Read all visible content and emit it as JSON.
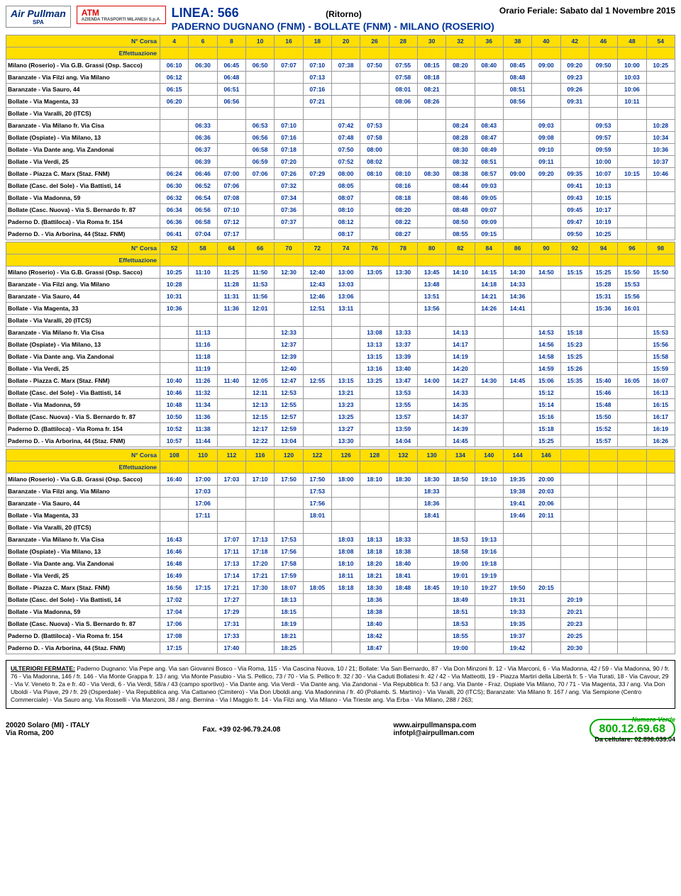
{
  "header": {
    "logo1": "Air Pullman",
    "logo1_sub": "SPA",
    "logo2": "ATM",
    "logo2_sub": "AZIENDA TRASPORTI MILANESI S.p.A.",
    "linea": "LINEA: 566",
    "ritorno": "(Ritorno)",
    "orario": "Orario Feriale: Sabato dal 1 Novembre 2015",
    "route": "PADERNO DUGNANO (FNM) - BOLLATE (FNM) - MILANO (ROSERIO)"
  },
  "stops": [
    "Milano (Roserio) - Via G.B. Grassi (Osp. Sacco)",
    "Baranzate - Via Filzi ang. Via Milano",
    "Baranzate - Via Sauro, 44",
    "Bollate - Via Magenta, 33",
    "Bollate - Via Varalli, 20 (ITCS)",
    "Baranzate - Via Milano fr. Via Cisa",
    "Bollate (Ospiate) - Via Milano, 13",
    "Bollate - Via Dante ang. Via Zandonai",
    "Bollate - Via Verdi, 25",
    "Bollate - Piazza C. Marx (Staz. FNM)",
    "Bollate (Casc. del Sole) - Via Battisti, 14",
    "Bollate - Via Madonna, 59",
    "Bollate (Casc. Nuova) - Via S. Bernardo fr. 87",
    "Paderno D. (Battiloca) - Via Roma fr. 154",
    "Paderno D. - Via Arborina, 44 (Staz. FNM)"
  ],
  "blocks": [
    {
      "corsa_label": "N° Corsa",
      "eff_label": "Effettuazione",
      "runs": [
        "4",
        "6",
        "8",
        "10",
        "16",
        "18",
        "20",
        "26",
        "28",
        "30",
        "32",
        "36",
        "38",
        "40",
        "42",
        "46",
        "48",
        "54"
      ],
      "rows": [
        [
          "06:10",
          "06:30",
          "06:45",
          "06:50",
          "07:07",
          "07:10",
          "07:38",
          "07:50",
          "07:55",
          "08:15",
          "08:20",
          "08:40",
          "08:45",
          "09:00",
          "09:20",
          "09:50",
          "10:00",
          "10:25"
        ],
        [
          "06:12",
          "",
          "06:48",
          "",
          "",
          "07:13",
          "",
          "",
          "07:58",
          "08:18",
          "",
          "",
          "08:48",
          "",
          "09:23",
          "",
          "10:03",
          ""
        ],
        [
          "06:15",
          "",
          "06:51",
          "",
          "",
          "07:16",
          "",
          "",
          "08:01",
          "08:21",
          "",
          "",
          "08:51",
          "",
          "09:26",
          "",
          "10:06",
          ""
        ],
        [
          "06:20",
          "",
          "06:56",
          "",
          "",
          "07:21",
          "",
          "",
          "08:06",
          "08:26",
          "",
          "",
          "08:56",
          "",
          "09:31",
          "",
          "10:11",
          ""
        ],
        [
          "",
          "",
          "",
          "",
          "",
          "",
          "",
          "",
          "",
          "",
          "",
          "",
          "",
          "",
          "",
          "",
          "",
          ""
        ],
        [
          "",
          "06:33",
          "",
          "06:53",
          "07:10",
          "",
          "07:42",
          "07:53",
          "",
          "",
          "08:24",
          "08:43",
          "",
          "09:03",
          "",
          "09:53",
          "",
          "10:28"
        ],
        [
          "",
          "06:36",
          "",
          "06:56",
          "07:16",
          "",
          "07:48",
          "07:58",
          "",
          "",
          "08:28",
          "08:47",
          "",
          "09:08",
          "",
          "09:57",
          "",
          "10:34"
        ],
        [
          "",
          "06:37",
          "",
          "06:58",
          "07:18",
          "",
          "07:50",
          "08:00",
          "",
          "",
          "08:30",
          "08:49",
          "",
          "09:10",
          "",
          "09:59",
          "",
          "10:36"
        ],
        [
          "",
          "06:39",
          "",
          "06:59",
          "07:20",
          "",
          "07:52",
          "08:02",
          "",
          "",
          "08:32",
          "08:51",
          "",
          "09:11",
          "",
          "10:00",
          "",
          "10:37"
        ],
        [
          "06:24",
          "06:46",
          "07:00",
          "07:06",
          "07:26",
          "07:29",
          "08:00",
          "08:10",
          "08:10",
          "08:30",
          "08:38",
          "08:57",
          "09:00",
          "09:20",
          "09:35",
          "10:07",
          "10:15",
          "10:46"
        ],
        [
          "06:30",
          "06:52",
          "07:06",
          "",
          "07:32",
          "",
          "08:05",
          "",
          "08:16",
          "",
          "08:44",
          "09:03",
          "",
          "",
          "09:41",
          "10:13",
          "",
          ""
        ],
        [
          "06:32",
          "06:54",
          "07:08",
          "",
          "07:34",
          "",
          "08:07",
          "",
          "08:18",
          "",
          "08:46",
          "09:05",
          "",
          "",
          "09:43",
          "10:15",
          "",
          ""
        ],
        [
          "06:34",
          "06:56",
          "07:10",
          "",
          "07:36",
          "",
          "08:10",
          "",
          "08:20",
          "",
          "08:48",
          "09:07",
          "",
          "",
          "09:45",
          "10:17",
          "",
          ""
        ],
        [
          "06:36",
          "06:58",
          "07:12",
          "",
          "07:37",
          "",
          "08:12",
          "",
          "08:22",
          "",
          "08:50",
          "09:09",
          "",
          "",
          "09:47",
          "10:19",
          "",
          ""
        ],
        [
          "06:41",
          "07:04",
          "07:17",
          "",
          "",
          "",
          "08:17",
          "",
          "08:27",
          "",
          "08:55",
          "09:15",
          "",
          "",
          "09:50",
          "10:25",
          "",
          ""
        ]
      ]
    },
    {
      "corsa_label": "N° Corsa",
      "eff_label": "Effettuazione",
      "runs": [
        "52",
        "58",
        "64",
        "66",
        "70",
        "72",
        "74",
        "76",
        "78",
        "80",
        "82",
        "84",
        "86",
        "90",
        "92",
        "94",
        "96",
        "98"
      ],
      "rows": [
        [
          "10:25",
          "11:10",
          "11:25",
          "11:50",
          "12:30",
          "12:40",
          "13:00",
          "13:05",
          "13:30",
          "13:45",
          "14:10",
          "14:15",
          "14:30",
          "14:50",
          "15:15",
          "15:25",
          "15:50",
          "15:50"
        ],
        [
          "10:28",
          "",
          "11:28",
          "11:53",
          "",
          "12:43",
          "13:03",
          "",
          "",
          "13:48",
          "",
          "14:18",
          "14:33",
          "",
          "",
          "15:28",
          "15:53",
          ""
        ],
        [
          "10:31",
          "",
          "11:31",
          "11:56",
          "",
          "12:46",
          "13:06",
          "",
          "",
          "13:51",
          "",
          "14:21",
          "14:36",
          "",
          "",
          "15:31",
          "15:56",
          ""
        ],
        [
          "10:36",
          "",
          "11:36",
          "12:01",
          "",
          "12:51",
          "13:11",
          "",
          "",
          "13:56",
          "",
          "14:26",
          "14:41",
          "",
          "",
          "15:36",
          "16:01",
          ""
        ],
        [
          "",
          "",
          "",
          "",
          "",
          "",
          "",
          "",
          "",
          "",
          "",
          "",
          "",
          "",
          "",
          "",
          "",
          ""
        ],
        [
          "",
          "11:13",
          "",
          "",
          "12:33",
          "",
          "",
          "13:08",
          "13:33",
          "",
          "14:13",
          "",
          "",
          "14:53",
          "15:18",
          "",
          "",
          "15:53"
        ],
        [
          "",
          "11:16",
          "",
          "",
          "12:37",
          "",
          "",
          "13:13",
          "13:37",
          "",
          "14:17",
          "",
          "",
          "14:56",
          "15:23",
          "",
          "",
          "15:56"
        ],
        [
          "",
          "11:18",
          "",
          "",
          "12:39",
          "",
          "",
          "13:15",
          "13:39",
          "",
          "14:19",
          "",
          "",
          "14:58",
          "15:25",
          "",
          "",
          "15:58"
        ],
        [
          "",
          "11:19",
          "",
          "",
          "12:40",
          "",
          "",
          "13:16",
          "13:40",
          "",
          "14:20",
          "",
          "",
          "14:59",
          "15:26",
          "",
          "",
          "15:59"
        ],
        [
          "10:40",
          "11:26",
          "11:40",
          "12:05",
          "12:47",
          "12:55",
          "13:15",
          "13:25",
          "13:47",
          "14:00",
          "14:27",
          "14:30",
          "14:45",
          "15:06",
          "15:35",
          "15:40",
          "16:05",
          "16:07"
        ],
        [
          "10:46",
          "11:32",
          "",
          "12:11",
          "12:53",
          "",
          "13:21",
          "",
          "13:53",
          "",
          "14:33",
          "",
          "",
          "15:12",
          "",
          "15:46",
          "",
          "16:13"
        ],
        [
          "10:48",
          "11:34",
          "",
          "12:13",
          "12:55",
          "",
          "13:23",
          "",
          "13:55",
          "",
          "14:35",
          "",
          "",
          "15:14",
          "",
          "15:48",
          "",
          "16:15"
        ],
        [
          "10:50",
          "11:36",
          "",
          "12:15",
          "12:57",
          "",
          "13:25",
          "",
          "13:57",
          "",
          "14:37",
          "",
          "",
          "15:16",
          "",
          "15:50",
          "",
          "16:17"
        ],
        [
          "10:52",
          "11:38",
          "",
          "12:17",
          "12:59",
          "",
          "13:27",
          "",
          "13:59",
          "",
          "14:39",
          "",
          "",
          "15:18",
          "",
          "15:52",
          "",
          "16:19"
        ],
        [
          "10:57",
          "11:44",
          "",
          "12:22",
          "13:04",
          "",
          "13:30",
          "",
          "14:04",
          "",
          "14:45",
          "",
          "",
          "15:25",
          "",
          "15:57",
          "",
          "16:26"
        ]
      ]
    },
    {
      "corsa_label": "N° Corsa",
      "eff_label": "Effettuazione",
      "runs": [
        "108",
        "110",
        "112",
        "116",
        "120",
        "122",
        "126",
        "128",
        "132",
        "130",
        "134",
        "140",
        "144",
        "146",
        "",
        "",
        "",
        ""
      ],
      "rows": [
        [
          "16:40",
          "17:00",
          "17:03",
          "17:10",
          "17:50",
          "17:50",
          "18:00",
          "18:10",
          "18:30",
          "18:30",
          "18:50",
          "19:10",
          "19:35",
          "20:00",
          "",
          "",
          "",
          ""
        ],
        [
          "",
          "17:03",
          "",
          "",
          "",
          "17:53",
          "",
          "",
          "",
          "18:33",
          "",
          "",
          "19:38",
          "20:03",
          "",
          "",
          "",
          ""
        ],
        [
          "",
          "17:06",
          "",
          "",
          "",
          "17:56",
          "",
          "",
          "",
          "18:36",
          "",
          "",
          "19:41",
          "20:06",
          "",
          "",
          "",
          ""
        ],
        [
          "",
          "17:11",
          "",
          "",
          "",
          "18:01",
          "",
          "",
          "",
          "18:41",
          "",
          "",
          "19:46",
          "20:11",
          "",
          "",
          "",
          ""
        ],
        [
          "",
          "",
          "",
          "",
          "",
          "",
          "",
          "",
          "",
          "",
          "",
          "",
          "",
          "",
          "",
          "",
          "",
          ""
        ],
        [
          "16:43",
          "",
          "17:07",
          "17:13",
          "17:53",
          "",
          "18:03",
          "18:13",
          "18:33",
          "",
          "18:53",
          "19:13",
          "",
          "",
          "",
          "",
          "",
          ""
        ],
        [
          "16:46",
          "",
          "17:11",
          "17:18",
          "17:56",
          "",
          "18:08",
          "18:18",
          "18:38",
          "",
          "18:58",
          "19:16",
          "",
          "",
          "",
          "",
          "",
          ""
        ],
        [
          "16:48",
          "",
          "17:13",
          "17:20",
          "17:58",
          "",
          "18:10",
          "18:20",
          "18:40",
          "",
          "19:00",
          "19:18",
          "",
          "",
          "",
          "",
          "",
          ""
        ],
        [
          "16:49",
          "",
          "17:14",
          "17:21",
          "17:59",
          "",
          "18:11",
          "18:21",
          "18:41",
          "",
          "19:01",
          "19:19",
          "",
          "",
          "",
          "",
          "",
          ""
        ],
        [
          "16:56",
          "17:15",
          "17:21",
          "17:30",
          "18:07",
          "18:05",
          "18:18",
          "18:30",
          "18:48",
          "18:45",
          "19:10",
          "19:27",
          "19:50",
          "20:15",
          "",
          "",
          "",
          ""
        ],
        [
          "17:02",
          "",
          "17:27",
          "",
          "18:13",
          "",
          "",
          "18:36",
          "",
          "",
          "18:49",
          "",
          "19:31",
          "",
          "20:19",
          "",
          "",
          ""
        ],
        [
          "17:04",
          "",
          "17:29",
          "",
          "18:15",
          "",
          "",
          "18:38",
          "",
          "",
          "18:51",
          "",
          "19:33",
          "",
          "20:21",
          "",
          "",
          ""
        ],
        [
          "17:06",
          "",
          "17:31",
          "",
          "18:19",
          "",
          "",
          "18:40",
          "",
          "",
          "18:53",
          "",
          "19:35",
          "",
          "20:23",
          "",
          "",
          ""
        ],
        [
          "17:08",
          "",
          "17:33",
          "",
          "18:21",
          "",
          "",
          "18:42",
          "",
          "",
          "18:55",
          "",
          "19:37",
          "",
          "20:25",
          "",
          "",
          ""
        ],
        [
          "17:15",
          "",
          "17:40",
          "",
          "18:25",
          "",
          "",
          "18:47",
          "",
          "",
          "19:00",
          "",
          "19:42",
          "",
          "20:30",
          "",
          "",
          ""
        ]
      ]
    }
  ],
  "footer": {
    "ul": "ULTERIORI FERMATE:",
    "text": " Paderno Dugnano: Via Pepe ang. Via san Giovanni Bosco - Via Roma, 115 - Via Cascina Nuova, 10 / 21; Bollate: Via San Bernardo, 87 - Via Don Minzoni fr. 12 - Via Marconi, 6 - Via Madonna, 42 / 59 - Via Madonna, 90 / fr. 76 - Via Madonna, 146 / fr. 146 - Via Monte Grappa  fr. 13 / ang. Via Monte Pasubio - Via S. Pellico, 73 / 70 - Via S. Pellico fr. 32 / 30 - Via Caduti Bollatesi fr. 42 / 42 - Via Matteotti, 19 - Piazza Martiri della Libertà fr. 5 - Via Turati, 18 - Via Cavour, 29 - Via V. Veneto fr. 2a e fr. 40 - Via Verdi, 6 - Via Verdi, 58/a / 43 (campo sportivo) - Via Dante ang. Via Verdi - Via Dante ang. Via Zandonai - Via Repubblica fr. 53 / ang. Via Dante - Fraz. Ospiate Via Milano, 70 / 71 - Via Magenta, 33 / ang. Via Don Uboldi - Via Piave, 29 / fr. 29 (Osperdale) - Via Repubblica ang. Via Cattaneo (Cimitero) - Via Don Uboldi ang. Via Madonnina / fr. 40 (Poliamb. S. Martino) - Via Varalli, 20 (ITCS); Baranzate: Via Milano fr. 167 / ang. Via Sempione (Centro Commerciale) - Via Sauro ang. Via Rosselli - Via Manzoni, 38 / ang. Bernina - Via I Maggio fr. 14 - Via Filzi ang. Via Milano - Via Trieste ang. Via Erba - Via Milano, 288 / 263;"
  },
  "bottom": {
    "addr1": "20020 Solaro (MI) - ITALY",
    "addr2": "Via Roma, 200",
    "fax": "Fax. +39 02-96.79.24.08",
    "web": "www.airpullmanspa.com",
    "email": "infotpl@airpullman.com",
    "nv_label": "Numero Verde",
    "nv": "800.12.69.68",
    "cell": "Da cellulare: 02.896.039.04"
  }
}
